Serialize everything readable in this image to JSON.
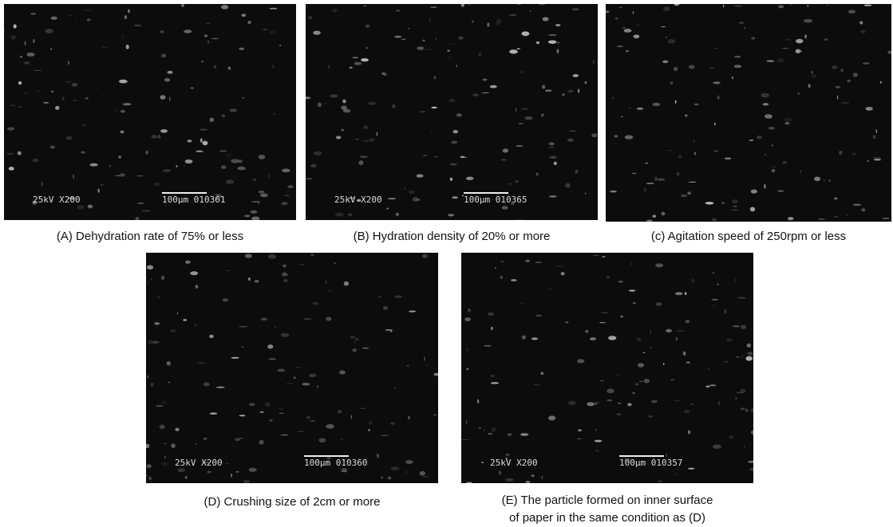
{
  "panels": [
    {
      "caption": "(A) Dehydration rate of 75% or less",
      "voltage": "25kV X200",
      "scale": "100μm 010361"
    },
    {
      "caption": "(B) Hydration density of 20% or more",
      "voltage": "25kV X200",
      "scale": "100μm 010365"
    },
    {
      "caption": "(c) Agitation speed of 250rpm or less"
    },
    {
      "caption": "(D) Crushing size of 2cm or more",
      "voltage": "25kV X200",
      "scale": "100μm 010360"
    },
    {
      "caption_lines": [
        "(E) The particle formed on inner surface",
        "of paper  in the same condition as (D)"
      ],
      "voltage": "25kV X200",
      "scale": "100μm 010357"
    }
  ]
}
